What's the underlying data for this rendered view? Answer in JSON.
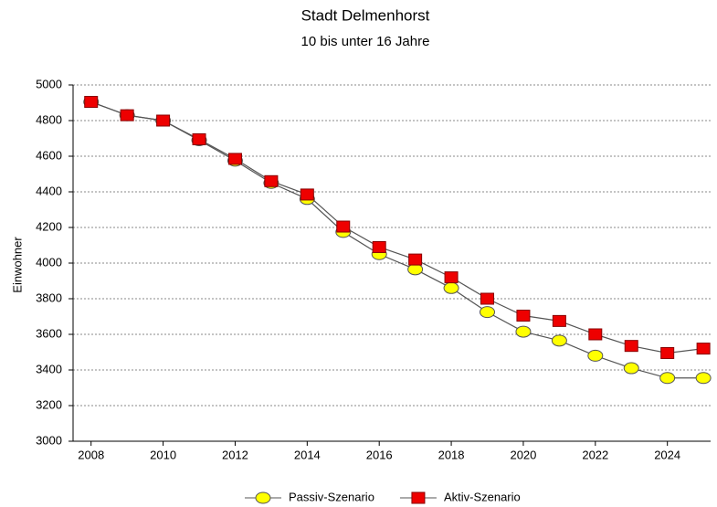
{
  "chart_data": {
    "type": "line",
    "title": "Stadt Delmenhorst",
    "subtitle": "10 bis unter 16 Jahre",
    "ylabel": "Einwohner",
    "x": [
      2008,
      2009,
      2010,
      2011,
      2012,
      2013,
      2014,
      2015,
      2016,
      2017,
      2018,
      2019,
      2020,
      2021,
      2022,
      2023,
      2024,
      2025
    ],
    "series": [
      {
        "name": "Passiv-Szenario",
        "color": "#ffff00",
        "marker": "ellipse",
        "values": [
          4905,
          4830,
          4800,
          4690,
          4575,
          4450,
          4360,
          4175,
          4050,
          3965,
          3860,
          3725,
          3615,
          3565,
          3480,
          3410,
          3355,
          3355
        ]
      },
      {
        "name": "Aktiv-Szenario",
        "color": "#ee0000",
        "marker": "square",
        "values": [
          4905,
          4830,
          4800,
          4695,
          4585,
          4460,
          4385,
          4205,
          4090,
          4020,
          3920,
          3800,
          3705,
          3675,
          3600,
          3535,
          3495,
          3520
        ]
      }
    ],
    "xlim": [
      2007.5,
      2025.2
    ],
    "xticks": [
      2008,
      2010,
      2012,
      2014,
      2016,
      2018,
      2020,
      2022,
      2024
    ],
    "ylim": [
      3000,
      5000
    ],
    "yticks": [
      3000,
      3200,
      3400,
      3600,
      3800,
      4000,
      4200,
      4400,
      4600,
      4800,
      5000
    ],
    "grid": true,
    "legend": "bottom"
  }
}
